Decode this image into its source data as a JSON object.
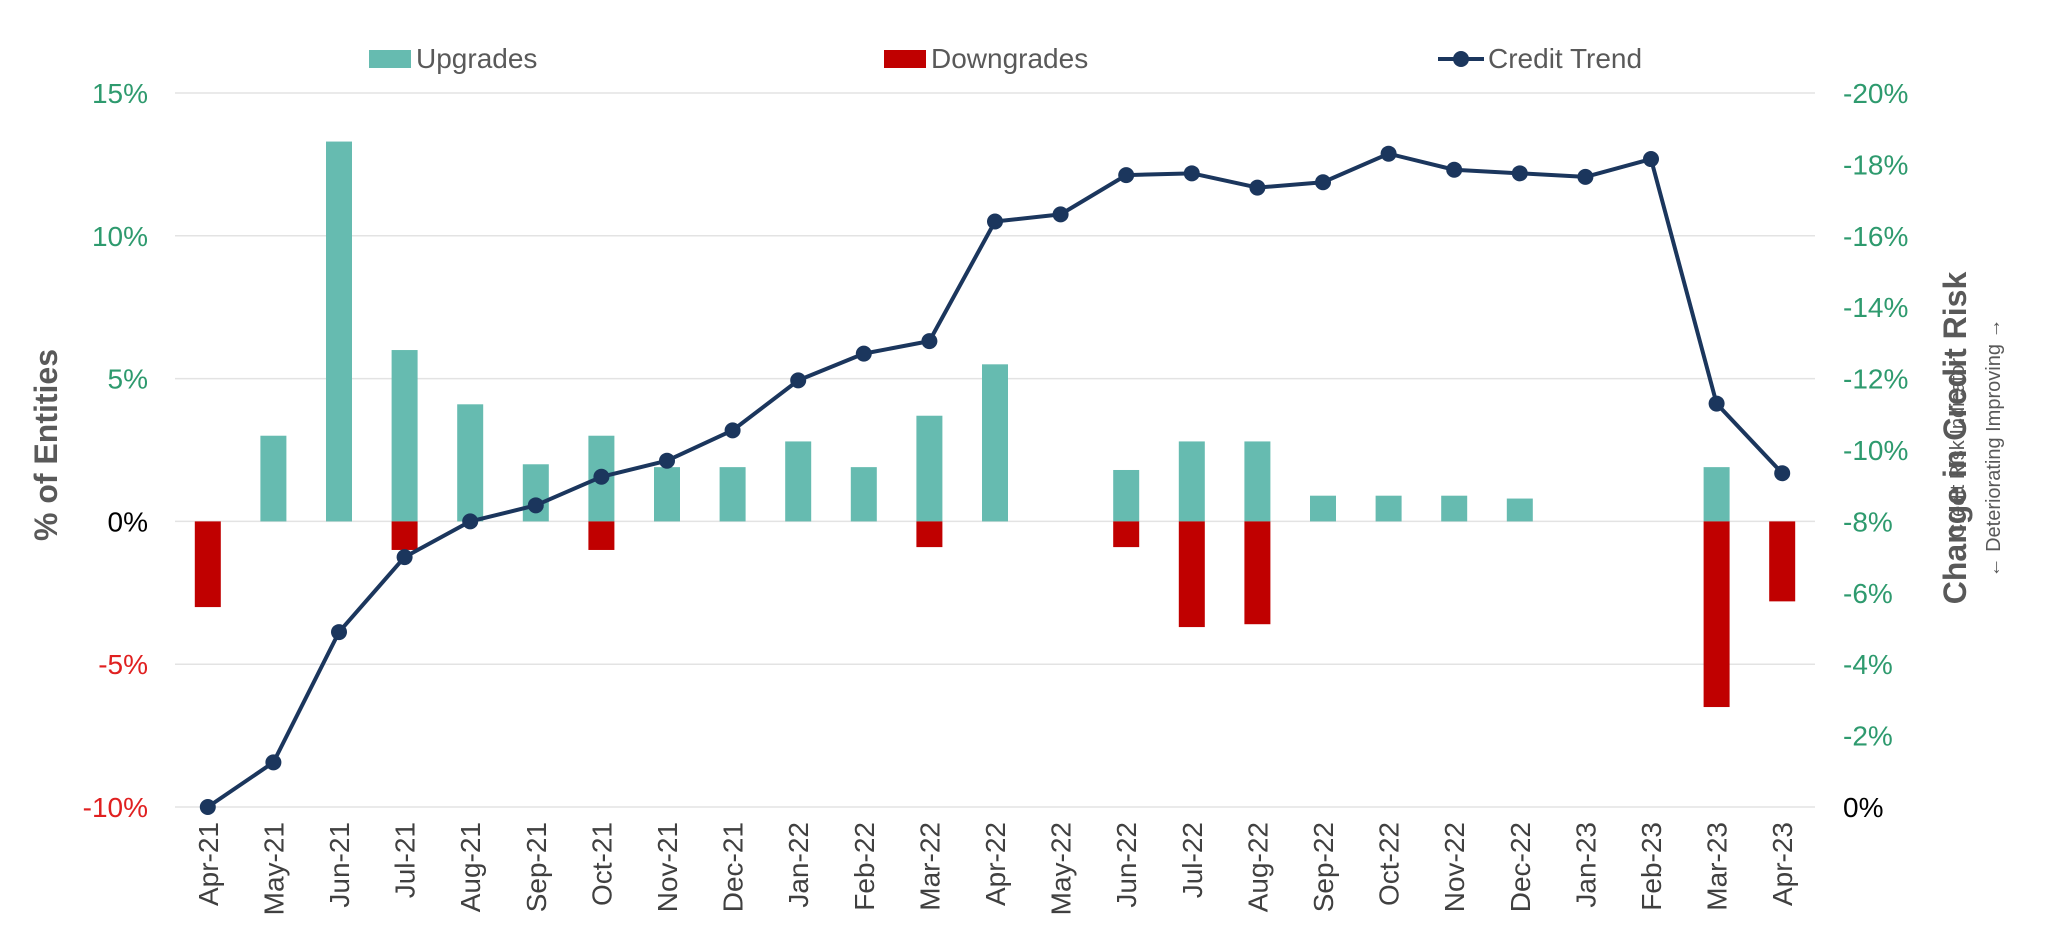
{
  "chart_data": {
    "type": "bar",
    "categories": [
      "Apr-21",
      "May-21",
      "Jun-21",
      "Jul-21",
      "Aug-21",
      "Sep-21",
      "Oct-21",
      "Nov-21",
      "Dec-21",
      "Jan-22",
      "Feb-22",
      "Mar-22",
      "Apr-22",
      "May-22",
      "Jun-22",
      "Jul-22",
      "Aug-22",
      "Sep-22",
      "Oct-22",
      "Nov-22",
      "Dec-22",
      "Jan-23",
      "Feb-23",
      "Mar-23",
      "Apr-23"
    ],
    "series": [
      {
        "name": "Upgrades",
        "kind": "bar",
        "axis": "left",
        "color": "#66bbb0",
        "values": [
          0,
          3.0,
          13.3,
          6.0,
          4.1,
          2.0,
          3.0,
          1.9,
          1.9,
          2.8,
          1.9,
          3.7,
          5.5,
          0,
          1.8,
          2.8,
          2.8,
          0.9,
          0.9,
          0.9,
          0.8,
          0,
          0,
          1.9,
          0
        ]
      },
      {
        "name": "Downgrades",
        "kind": "bar",
        "axis": "left",
        "color": "#c00000",
        "values": [
          -3.0,
          0,
          0,
          -1.0,
          0,
          0,
          -1.0,
          0,
          0,
          0,
          0,
          -0.9,
          0,
          0,
          -0.9,
          -3.7,
          -3.6,
          0,
          0,
          0,
          0,
          0,
          0,
          -6.5,
          -2.8
        ]
      },
      {
        "name": "Credit Trend",
        "kind": "line",
        "axis": "right",
        "color": "#1b365d",
        "values": [
          0.0,
          -1.25,
          -4.9,
          -7.0,
          -8.0,
          -8.45,
          -9.25,
          -9.7,
          -10.55,
          -11.95,
          -12.7,
          -13.05,
          -16.4,
          -16.6,
          -17.7,
          -17.75,
          -17.35,
          -17.5,
          -18.3,
          -17.85,
          -17.75,
          -17.65,
          -18.15,
          -11.3,
          -9.35
        ]
      }
    ],
    "y_left": {
      "label": "% of Entities",
      "ylim": [
        -10,
        15
      ],
      "ticks": [
        15,
        10,
        5,
        0,
        -5,
        -10
      ],
      "tick_labels": [
        "15%",
        "10%",
        "5%",
        "0%",
        "-5%",
        "-10%"
      ],
      "tick_colors": [
        "#2e9a6e",
        "#2e9a6e",
        "#2e9a6e",
        "#000000",
        "#e02020",
        "#e02020"
      ]
    },
    "y_right": {
      "label": "Change in Credit Risk",
      "sublabel_1": "Credit Risk Indicator",
      "sublabel_2": "← Deteriorating Improving →",
      "ylim": [
        0,
        -20
      ],
      "ticks": [
        -20,
        -18,
        -16,
        -14,
        -12,
        -10,
        -8,
        -6,
        -4,
        -2,
        0
      ],
      "tick_labels": [
        "-20%",
        "-18%",
        "-16%",
        "-14%",
        "-12%",
        "-10%",
        "-8%",
        "-6%",
        "-4%",
        "-2%",
        "0%"
      ],
      "tick_colors": [
        "#2e9a6e",
        "#2e9a6e",
        "#2e9a6e",
        "#2e9a6e",
        "#2e9a6e",
        "#2e9a6e",
        "#2e9a6e",
        "#2e9a6e",
        "#2e9a6e",
        "#2e9a6e",
        "#000000"
      ]
    },
    "grid": true,
    "legend": {
      "placement": "top",
      "items": [
        "Upgrades",
        "Downgrades",
        "Credit Trend"
      ]
    }
  }
}
